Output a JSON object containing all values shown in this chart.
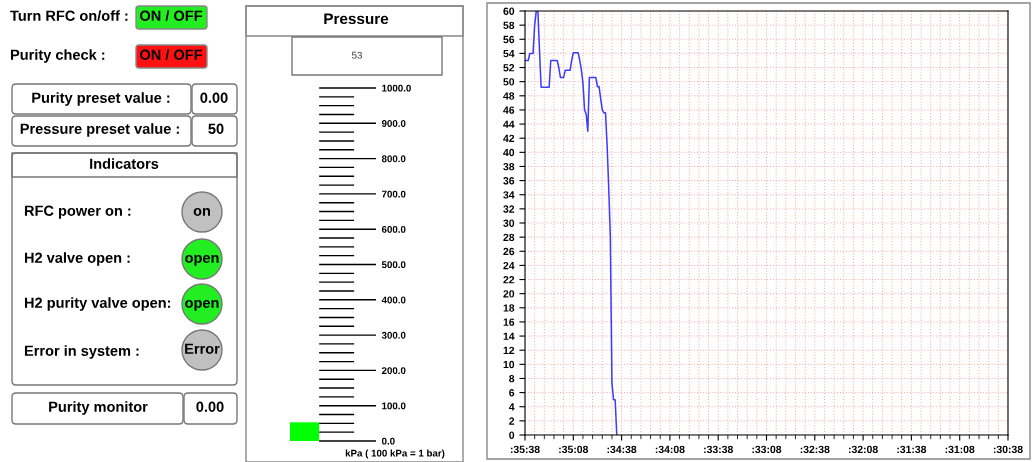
{
  "chart_data": [
    {
      "type": "other",
      "annotations": [
        "Turn RFC on/off :",
        "ON / OFF",
        "Purity check :",
        "ON / OFF",
        "Purity preset value :",
        "0.00",
        "Pressure preset value :",
        "50",
        "Indicators",
        "RFC power on :",
        "on",
        "H2 valve open :",
        "open",
        "H2 purity valve open:",
        "open",
        "Error in system :",
        "Error",
        "Purity monitor",
        "0.00"
      ]
    },
    {
      "type": "bar",
      "title": "Pressure",
      "xlabel": "kPa ( 100 kPa = 1 bar)",
      "annotations": [
        "53"
      ],
      "categories": [
        null
      ],
      "values": [
        53
      ],
      "color": "#00ff00",
      "ylim": [
        0,
        1000
      ],
      "tick_labels": "y",
      "grid": "y",
      "yticks": [
        {
          "value": 0,
          "label": "0.0"
        },
        {
          "value": 25,
          "label": null
        },
        {
          "value": 50,
          "label": null
        },
        {
          "value": 75,
          "label": null
        },
        {
          "value": 100,
          "label": "100.0"
        },
        {
          "value": 125,
          "label": null
        },
        {
          "value": 150,
          "label": null
        },
        {
          "value": 175,
          "label": null
        },
        {
          "value": 200,
          "label": "200.0"
        },
        {
          "value": 225,
          "label": null
        },
        {
          "value": 250,
          "label": null
        },
        {
          "value": 275,
          "label": null
        },
        {
          "value": 300,
          "label": "300.0"
        },
        {
          "value": 325,
          "label": null
        },
        {
          "value": 350,
          "label": null
        },
        {
          "value": 375,
          "label": null
        },
        {
          "value": 400,
          "label": "400.0"
        },
        {
          "value": 425,
          "label": null
        },
        {
          "value": 450,
          "label": null
        },
        {
          "value": 475,
          "label": null
        },
        {
          "value": 500,
          "label": "500.0"
        },
        {
          "value": 525,
          "label": null
        },
        {
          "value": 550,
          "label": null
        },
        {
          "value": 575,
          "label": null
        },
        {
          "value": 600,
          "label": "600.0"
        },
        {
          "value": 625,
          "label": null
        },
        {
          "value": 650,
          "label": null
        },
        {
          "value": 675,
          "label": null
        },
        {
          "value": 700,
          "label": "700.0"
        },
        {
          "value": 725,
          "label": null
        },
        {
          "value": 750,
          "label": null
        },
        {
          "value": 775,
          "label": null
        },
        {
          "value": 800,
          "label": "800.0"
        },
        {
          "value": 825,
          "label": null
        },
        {
          "value": 850,
          "label": null
        },
        {
          "value": 875,
          "label": null
        },
        {
          "value": 900,
          "label": "900.0"
        },
        {
          "value": 925,
          "label": null
        },
        {
          "value": 950,
          "label": null
        },
        {
          "value": 975,
          "label": null
        },
        {
          "value": 1000,
          "label": "1000.0"
        }
      ]
    },
    {
      "type": "line",
      "grid": true,
      "line_style": "solid",
      "ylim": [
        0,
        60
      ],
      "categories": [
        ":35:38",
        null,
        null,
        null,
        null,
        null,
        null,
        null,
        null,
        null,
        null,
        null,
        null,
        null,
        null,
        null,
        null,
        null,
        null,
        null,
        null,
        null,
        null,
        null,
        null,
        null,
        null,
        null,
        null,
        null,
        ":35:08",
        null,
        null,
        null,
        null,
        null,
        null,
        null,
        null,
        null,
        null,
        null,
        null,
        null,
        null,
        null,
        null,
        null,
        null,
        null,
        null,
        null,
        null,
        null,
        null,
        null,
        null,
        null,
        null,
        null,
        ":34:38",
        null,
        null,
        null,
        null,
        null,
        null,
        null,
        null,
        null,
        null,
        null,
        null,
        null,
        null,
        null,
        null,
        null,
        null,
        null,
        null,
        null,
        null,
        null,
        null,
        null,
        null,
        null,
        null,
        null,
        ":34:08",
        null,
        null,
        null,
        null,
        null,
        null,
        null,
        null,
        null,
        null,
        null,
        null,
        null,
        null,
        null,
        null,
        null,
        null,
        null,
        null,
        null,
        null,
        null,
        null,
        null,
        null,
        null,
        null,
        null,
        ":33:38",
        null,
        null,
        null,
        null,
        null,
        null,
        null,
        null,
        null,
        null,
        null,
        null,
        null,
        null,
        null,
        null,
        null,
        null,
        null,
        null,
        null,
        null,
        null,
        null,
        null,
        null,
        null,
        null,
        null,
        ":33:08",
        null,
        null,
        null,
        null,
        null,
        null,
        null,
        null,
        null,
        null,
        null,
        null,
        null,
        null,
        null,
        null,
        null,
        null,
        null,
        null,
        null,
        null,
        null,
        null,
        null,
        null,
        null,
        null,
        null,
        ":32:38",
        null,
        null,
        null,
        null,
        null,
        null,
        null,
        null,
        null,
        null,
        null,
        null,
        null,
        null,
        null,
        null,
        null,
        null,
        null,
        null,
        null,
        null,
        null,
        null,
        null,
        null,
        null,
        null,
        null,
        ":32:08",
        null,
        null,
        null,
        null,
        null,
        null,
        null,
        null,
        null,
        null,
        null,
        null,
        null,
        null,
        null,
        null,
        null,
        null,
        null,
        null,
        null,
        null,
        null,
        null,
        null,
        null,
        null,
        null,
        null,
        ":31:38",
        null,
        null,
        null,
        null,
        null,
        null,
        null,
        null,
        null,
        null,
        null,
        null,
        null,
        null,
        null,
        null,
        null,
        null,
        null,
        null,
        null,
        null,
        null,
        null,
        null,
        null,
        null,
        null,
        null,
        ":31:08",
        null,
        null,
        null,
        null,
        null,
        null,
        null,
        null,
        null,
        null,
        null,
        null,
        null,
        null,
        null,
        null,
        null,
        null,
        null,
        null,
        null,
        null,
        null,
        null,
        null,
        null,
        null,
        null,
        null,
        ":30:38"
      ],
      "series": [
        {
          "color": "#3c3cff",
          "values": [
            53,
            53,
            53,
            54,
            54,
            54,
            58,
            60,
            60,
            54.5,
            49.2,
            49.2,
            49.2,
            49.2,
            49.2,
            49.2,
            53,
            53,
            53,
            53,
            53,
            52,
            50.6,
            50.6,
            50.6,
            51.6,
            51.6,
            51.6,
            51.6,
            53,
            54.1,
            54.1,
            54.1,
            54.1,
            53,
            51.7,
            49.8,
            46,
            45.4,
            43,
            50.6,
            50.6,
            50.6,
            50.6,
            50.6,
            49.3,
            49.3,
            47.6,
            46,
            45.6,
            45.6,
            41,
            35,
            28,
            7.3,
            5,
            5,
            0,
            null,
            null,
            null,
            null,
            null,
            null,
            null,
            null,
            null,
            null,
            null,
            null,
            null,
            null,
            null,
            null,
            null,
            null,
            null,
            null,
            null,
            null,
            null,
            null,
            null,
            null,
            null,
            null,
            null,
            null,
            null,
            null,
            null,
            null,
            null,
            null,
            null,
            null,
            null,
            null,
            null,
            null,
            null,
            null,
            null,
            null,
            null,
            null,
            null,
            null,
            null,
            null,
            null,
            null,
            null,
            null,
            null,
            null,
            null,
            null,
            null,
            null,
            null,
            null,
            null,
            null,
            null,
            null,
            null,
            null,
            null,
            null,
            null,
            null,
            null,
            null,
            null,
            null,
            null,
            null,
            null,
            null,
            null,
            null,
            null,
            null,
            null,
            null,
            null,
            null,
            null,
            null,
            null,
            null,
            null,
            null,
            null,
            null,
            null,
            null,
            null,
            null,
            null,
            null,
            null,
            null,
            null,
            null,
            null,
            null,
            null,
            null,
            null,
            null,
            null,
            null,
            null,
            null,
            null,
            null,
            null,
            null,
            null,
            null,
            null,
            null,
            null,
            null,
            null,
            null,
            null,
            null,
            null,
            null,
            null,
            null,
            null,
            null,
            null,
            null,
            null,
            null,
            null,
            null,
            null,
            null,
            null,
            null,
            null,
            null,
            null,
            null,
            null,
            null,
            null,
            null,
            null,
            null,
            null,
            null,
            null,
            null,
            null,
            null,
            null,
            null,
            null,
            null,
            null,
            null,
            null,
            null,
            null,
            null,
            null,
            null,
            null,
            null,
            null,
            null,
            null,
            null,
            null,
            null,
            null,
            null,
            null,
            null,
            null,
            null,
            null,
            null,
            null,
            null,
            null,
            null,
            null,
            null,
            null,
            null,
            null,
            null,
            null,
            null,
            null,
            null,
            null,
            null,
            null,
            null,
            null,
            null,
            null,
            null,
            null,
            null,
            null,
            null,
            null,
            null,
            null,
            null,
            null,
            null,
            null,
            null,
            null,
            null,
            null,
            null,
            null,
            null,
            null,
            null,
            null,
            null,
            null,
            null,
            null,
            null,
            null,
            null,
            null
          ]
        }
      ],
      "yticks": [
        0,
        2,
        4,
        6,
        8,
        10,
        12,
        14,
        16,
        18,
        20,
        22,
        24,
        26,
        28,
        30,
        32,
        34,
        36,
        38,
        40,
        42,
        44,
        46,
        48,
        50,
        52,
        54,
        56,
        58,
        60
      ],
      "tick_labels": true
    }
  ]
}
